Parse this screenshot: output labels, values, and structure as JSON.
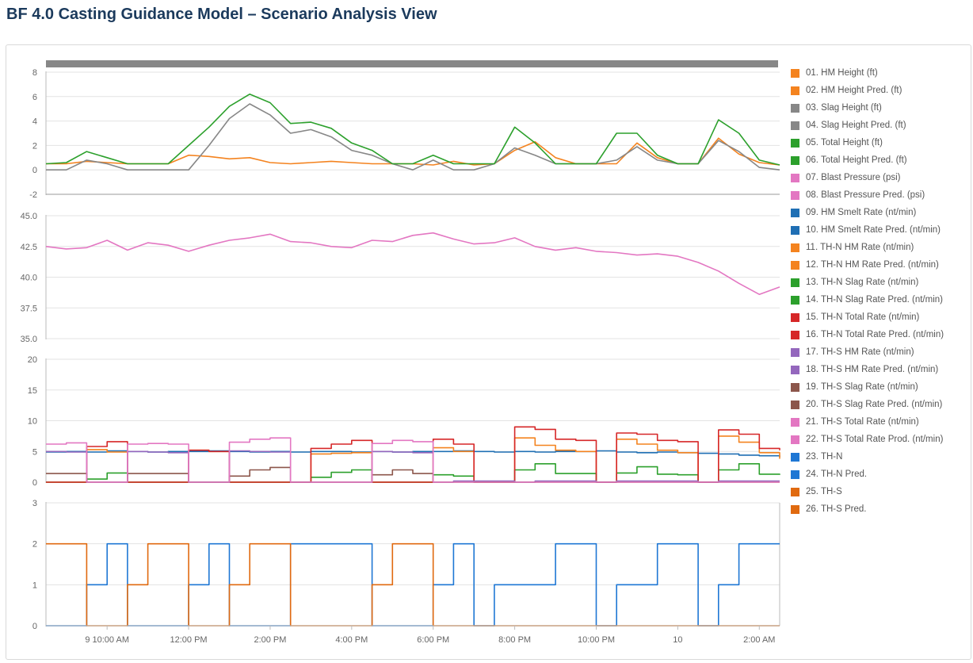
{
  "header": {
    "title": "BF 4.0 Casting Guidance Model – Scenario Analysis View"
  },
  "x_axis": {
    "tick_labels": [
      "9 10:00 AM",
      "12:00 PM",
      "2:00 PM",
      "4:00 PM",
      "6:00 PM",
      "8:00 PM",
      "10:00 PM",
      "10",
      "2:00 AM"
    ]
  },
  "legend": [
    {
      "label": "01. HM Height (ft)",
      "color": "#f4831f"
    },
    {
      "label": "02. HM Height Pred. (ft)",
      "color": "#f4831f"
    },
    {
      "label": "03. Slag Height (ft)",
      "color": "#878787"
    },
    {
      "label": "04. Slag Height Pred. (ft)",
      "color": "#878787"
    },
    {
      "label": "05. Total Height (ft)",
      "color": "#2ca02c"
    },
    {
      "label": "06. Total Height Pred. (ft)",
      "color": "#2ca02c"
    },
    {
      "label": "07. Blast Pressure (psi)",
      "color": "#e377c2"
    },
    {
      "label": "08. Blast Pressure Pred. (psi)",
      "color": "#e377c2"
    },
    {
      "label": "09. HM Smelt Rate (nt/min)",
      "color": "#1f6fb4"
    },
    {
      "label": "10. HM Smelt Rate Pred. (nt/min)",
      "color": "#1f6fb4"
    },
    {
      "label": "11. TH-N HM Rate (nt/min)",
      "color": "#f4831f"
    },
    {
      "label": "12. TH-N HM Rate Pred. (nt/min)",
      "color": "#f4831f"
    },
    {
      "label": "13. TH-N Slag Rate (nt/min)",
      "color": "#2ca02c"
    },
    {
      "label": "14. TH-N Slag Rate Pred. (nt/min)",
      "color": "#2ca02c"
    },
    {
      "label": "15. TH-N Total Rate (nt/min)",
      "color": "#d62728"
    },
    {
      "label": "16. TH-N Total Rate Pred. (nt/min)",
      "color": "#d62728"
    },
    {
      "label": "17. TH-S HM Rate (nt/min)",
      "color": "#9467bd"
    },
    {
      "label": "18. TH-S HM Rate Pred. (nt/min)",
      "color": "#9467bd"
    },
    {
      "label": "19. TH-S Slag Rate (nt/min)",
      "color": "#8c564b"
    },
    {
      "label": "20. TH-S Slag Rate Pred. (nt/min)",
      "color": "#8c564b"
    },
    {
      "label": "21. TH-S Total Rate (nt/min)",
      "color": "#e377c2"
    },
    {
      "label": "22. TH-S Total Rate Prod. (nt/min)",
      "color": "#e377c2"
    },
    {
      "label": "23. TH-N",
      "color": "#1f77d4"
    },
    {
      "label": "24. TH-N Pred.",
      "color": "#1f77d4"
    },
    {
      "label": "25. TH-S",
      "color": "#e06a10"
    },
    {
      "label": "26. TH-S Pred.",
      "color": "#e06a10"
    }
  ],
  "chart_data": [
    {
      "type": "line",
      "title": "",
      "xlabel": "",
      "ylabel": "",
      "ylim": [
        -2,
        8
      ],
      "yticks": [
        "8",
        "6",
        "4",
        "2",
        "0",
        "-2"
      ],
      "x": [
        8.5,
        9.0,
        9.5,
        10.0,
        10.5,
        11.0,
        11.5,
        12.0,
        12.5,
        13.0,
        13.5,
        14.0,
        14.5,
        15.0,
        15.5,
        16.0,
        16.5,
        17.0,
        17.5,
        18.0,
        18.5,
        19.0,
        19.5,
        20.0,
        20.5,
        21.0,
        21.5,
        22.0,
        22.5,
        23.0,
        23.5,
        24.0,
        24.5,
        25.0,
        25.5,
        26.0,
        26.5
      ],
      "series": [
        {
          "name": "HM Height (ft)",
          "color": "#f4831f",
          "values": [
            0.5,
            0.5,
            0.7,
            0.6,
            0.5,
            0.5,
            0.5,
            1.2,
            1.1,
            0.9,
            1.0,
            0.6,
            0.5,
            0.6,
            0.7,
            0.6,
            0.5,
            0.5,
            0.5,
            0.4,
            0.7,
            0.4,
            0.5,
            1.6,
            2.3,
            1.0,
            0.5,
            0.5,
            0.5,
            2.2,
            1.0,
            0.5,
            0.5,
            2.6,
            1.3,
            0.6,
            0.4
          ]
        },
        {
          "name": "Slag Height (ft)",
          "color": "#878787",
          "values": [
            0.0,
            0.0,
            0.8,
            0.5,
            0.0,
            0.0,
            0.0,
            0.0,
            2.0,
            4.2,
            5.4,
            4.5,
            3.0,
            3.3,
            2.7,
            1.6,
            1.2,
            0.5,
            0.0,
            0.8,
            0.0,
            0.0,
            0.5,
            1.8,
            1.2,
            0.5,
            0.5,
            0.5,
            0.8,
            1.9,
            0.8,
            0.5,
            0.5,
            2.4,
            1.5,
            0.2,
            0.0
          ]
        },
        {
          "name": "Total Height (ft)",
          "color": "#2ca02c",
          "values": [
            0.5,
            0.6,
            1.5,
            1.0,
            0.5,
            0.5,
            0.5,
            2.0,
            3.5,
            5.2,
            6.2,
            5.5,
            3.8,
            3.9,
            3.4,
            2.2,
            1.6,
            0.5,
            0.5,
            1.2,
            0.5,
            0.5,
            0.5,
            3.5,
            2.2,
            0.5,
            0.5,
            0.5,
            3.0,
            3.0,
            1.2,
            0.5,
            0.5,
            4.1,
            3.0,
            0.8,
            0.4
          ]
        }
      ]
    },
    {
      "type": "line",
      "title": "",
      "xlabel": "",
      "ylabel": "",
      "ylim": [
        35.0,
        45.0
      ],
      "yticks": [
        "45.0",
        "42.5",
        "40.0",
        "37.5",
        "35.0"
      ],
      "x": [
        8.5,
        9.0,
        9.5,
        10.0,
        10.5,
        11.0,
        11.5,
        12.0,
        12.5,
        13.0,
        13.5,
        14.0,
        14.5,
        15.0,
        15.5,
        16.0,
        16.5,
        17.0,
        17.5,
        18.0,
        18.5,
        19.0,
        19.5,
        20.0,
        20.5,
        21.0,
        21.5,
        22.0,
        22.5,
        23.0,
        23.5,
        24.0,
        24.5,
        25.0,
        25.5,
        26.0,
        26.5
      ],
      "series": [
        {
          "name": "Blast Pressure (psi)",
          "color": "#e377c2",
          "values": [
            42.5,
            42.3,
            42.4,
            43.0,
            42.2,
            42.8,
            42.6,
            42.1,
            42.6,
            43.0,
            43.2,
            43.5,
            42.9,
            42.8,
            42.5,
            42.4,
            43.0,
            42.9,
            43.4,
            43.6,
            43.1,
            42.7,
            42.8,
            43.2,
            42.5,
            42.2,
            42.4,
            42.1,
            42.0,
            41.8,
            41.9,
            41.7,
            41.2,
            40.5,
            39.5,
            38.6,
            39.2
          ]
        }
      ]
    },
    {
      "type": "line",
      "title": "",
      "xlabel": "",
      "ylabel": "",
      "ylim": [
        0,
        20
      ],
      "yticks": [
        "20",
        "15",
        "10",
        "5",
        "0"
      ],
      "x": [
        8.5,
        9.0,
        9.5,
        10.0,
        10.5,
        11.0,
        11.5,
        12.0,
        12.5,
        13.0,
        13.5,
        14.0,
        14.5,
        15.0,
        15.5,
        16.0,
        16.5,
        17.0,
        17.5,
        18.0,
        18.5,
        19.0,
        19.5,
        20.0,
        20.5,
        21.0,
        21.5,
        22.0,
        22.5,
        23.0,
        23.5,
        24.0,
        24.5,
        25.0,
        25.5,
        26.0,
        26.5
      ],
      "series": [
        {
          "name": "HM Smelt Rate (nt/min)",
          "color": "#1f6fb4",
          "values": [
            4.9,
            5.0,
            4.9,
            5.1,
            5.0,
            4.9,
            5.0,
            5.0,
            5.1,
            5.0,
            4.9,
            5.0,
            4.9,
            5.0,
            5.0,
            4.9,
            5.0,
            4.9,
            5.0,
            5.0,
            5.1,
            5.0,
            4.9,
            5.0,
            4.9,
            5.0,
            5.0,
            5.1,
            4.9,
            4.8,
            4.9,
            4.8,
            4.7,
            4.6,
            4.4,
            4.3,
            4.1
          ]
        },
        {
          "name": "TH-N HM Rate (nt/min)",
          "color": "#f4831f",
          "values": [
            0,
            0,
            5.3,
            4.9,
            0,
            0,
            0,
            5.2,
            5.0,
            0,
            0,
            0,
            0,
            4.6,
            4.7,
            4.8,
            0,
            0,
            0,
            5.6,
            5.0,
            0,
            0,
            7.2,
            6.0,
            5.2,
            5.0,
            0,
            7.0,
            6.2,
            5.2,
            4.8,
            0,
            7.5,
            6.5,
            4.8,
            3.8
          ]
        },
        {
          "name": "TH-N Slag Rate (nt/min)",
          "color": "#2ca02c",
          "values": [
            0,
            0,
            0.5,
            1.5,
            0,
            0,
            0,
            0,
            0,
            0,
            0,
            0,
            0,
            0.8,
            1.6,
            2.0,
            0,
            0,
            0,
            1.2,
            1.0,
            0,
            0,
            2.0,
            3.0,
            1.4,
            1.4,
            0,
            1.5,
            2.5,
            1.3,
            1.2,
            0,
            2.0,
            3.0,
            1.3,
            1.2
          ]
        },
        {
          "name": "TH-N Total Rate (nt/min)",
          "color": "#d62728",
          "values": [
            0,
            0,
            5.8,
            6.6,
            0,
            0,
            0,
            5.2,
            5.0,
            0,
            0,
            0,
            0,
            5.5,
            6.2,
            6.8,
            0,
            0,
            0,
            7.0,
            6.2,
            0,
            0,
            9.0,
            8.6,
            7.0,
            6.8,
            0,
            8.0,
            7.8,
            6.8,
            6.6,
            0,
            8.5,
            7.8,
            5.5,
            5.2
          ]
        },
        {
          "name": "TH-S HM Rate (nt/min)",
          "color": "#9467bd",
          "values": [
            5.0,
            4.9,
            0,
            0,
            5.0,
            4.9,
            4.8,
            0,
            0,
            5.1,
            5.0,
            4.9,
            0,
            0,
            0,
            0,
            5.0,
            4.9,
            4.8,
            0,
            0.2,
            0.2,
            0.2,
            0,
            0.2,
            0.2,
            0.2,
            0,
            0.2,
            0.2,
            0.2,
            0.2,
            0,
            0.2,
            0.2,
            0.2,
            0.2
          ]
        },
        {
          "name": "TH-S Slag Rate (nt/min)",
          "color": "#8c564b",
          "values": [
            1.4,
            1.4,
            0,
            0,
            1.4,
            1.4,
            1.4,
            0,
            0,
            1.0,
            2.0,
            2.4,
            0,
            0,
            0,
            0,
            1.2,
            2.0,
            1.4,
            0,
            0,
            0,
            0,
            0,
            0,
            0,
            0,
            0,
            0,
            0,
            0,
            0,
            0,
            0,
            0,
            0,
            0
          ]
        },
        {
          "name": "TH-S Total Rate (nt/min)",
          "color": "#e377c2",
          "values": [
            6.2,
            6.4,
            0,
            0,
            6.2,
            6.3,
            6.2,
            0,
            0,
            6.5,
            7.0,
            7.2,
            0,
            0,
            0,
            0,
            6.3,
            6.8,
            6.6,
            0,
            0,
            0,
            0,
            0,
            0,
            0,
            0,
            0,
            0,
            0,
            0,
            0,
            0,
            0,
            0,
            0,
            0
          ]
        }
      ]
    },
    {
      "type": "line",
      "title": "",
      "xlabel": "",
      "ylabel": "",
      "ylim": [
        0,
        3
      ],
      "yticks": [
        "3",
        "2",
        "1",
        "0"
      ],
      "x": [
        8.5,
        9.0,
        9.5,
        10.0,
        10.5,
        11.0,
        11.5,
        12.0,
        12.5,
        13.0,
        13.5,
        14.0,
        14.5,
        15.0,
        15.5,
        16.0,
        16.5,
        17.0,
        17.5,
        18.0,
        18.5,
        19.0,
        19.5,
        20.0,
        20.5,
        21.0,
        21.5,
        22.0,
        22.5,
        23.0,
        23.5,
        24.0,
        24.5,
        25.0,
        25.5,
        26.0,
        26.5
      ],
      "series": [
        {
          "name": "TH-N",
          "color": "#1f77d4",
          "values": [
            0,
            0,
            1,
            2,
            0,
            0,
            0,
            1,
            2,
            0,
            0,
            0,
            2,
            2,
            2,
            2,
            0,
            0,
            0,
            1,
            2,
            0,
            1,
            1,
            1,
            2,
            2,
            0,
            1,
            1,
            2,
            2,
            0,
            1,
            2,
            2,
            2
          ]
        },
        {
          "name": "TH-S",
          "color": "#e06a10",
          "values": [
            2,
            2,
            0,
            0,
            1,
            2,
            2,
            0,
            0,
            1,
            2,
            2,
            0,
            0,
            0,
            0,
            1,
            2,
            2,
            0,
            0,
            0,
            0,
            0,
            0,
            0,
            0,
            0,
            0,
            0,
            0,
            0,
            0,
            0,
            0,
            0,
            0
          ]
        }
      ]
    }
  ]
}
